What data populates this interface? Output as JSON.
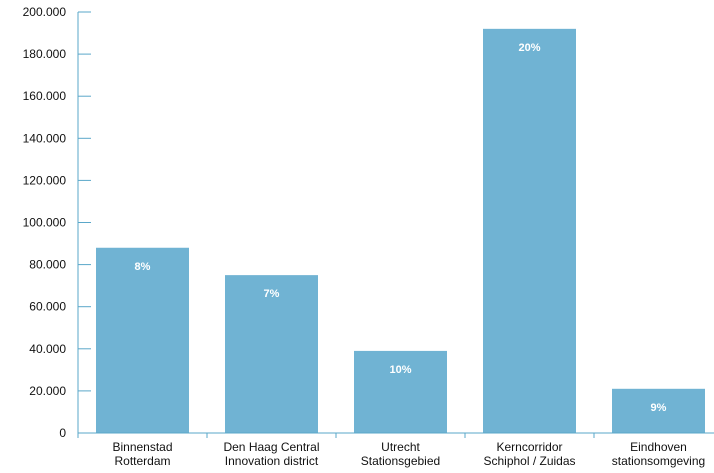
{
  "chart_data": {
    "type": "bar",
    "title": "",
    "xlabel": "",
    "ylabel": "",
    "categories": [
      [
        "Binnenstad",
        "Rotterdam"
      ],
      [
        "Den Haag Central",
        "Innovation district"
      ],
      [
        "Utrecht",
        "Stationsgebied"
      ],
      [
        "Kerncorridor",
        "Schiphol / Zuidas"
      ],
      [
        "Eindhoven",
        "stationsomgeving"
      ]
    ],
    "values": [
      88000,
      75000,
      39000,
      192000,
      21000
    ],
    "data_labels": [
      "8%",
      "7%",
      "10%",
      "20%",
      "9%"
    ],
    "ylim": [
      0,
      200000
    ],
    "y_ticks": [
      0,
      20000,
      40000,
      60000,
      80000,
      100000,
      120000,
      140000,
      160000,
      180000,
      200000
    ],
    "y_tick_labels": [
      "0",
      "20.000",
      "40.000",
      "60.000",
      "80.000",
      "100.000",
      "120.000",
      "140.000",
      "160.000",
      "180.000",
      "200.000"
    ],
    "grid": false,
    "legend": "none",
    "colors": {
      "bar": "#70b3d3",
      "axis": "#5aa7c9",
      "data_label": "#ffffff"
    }
  }
}
